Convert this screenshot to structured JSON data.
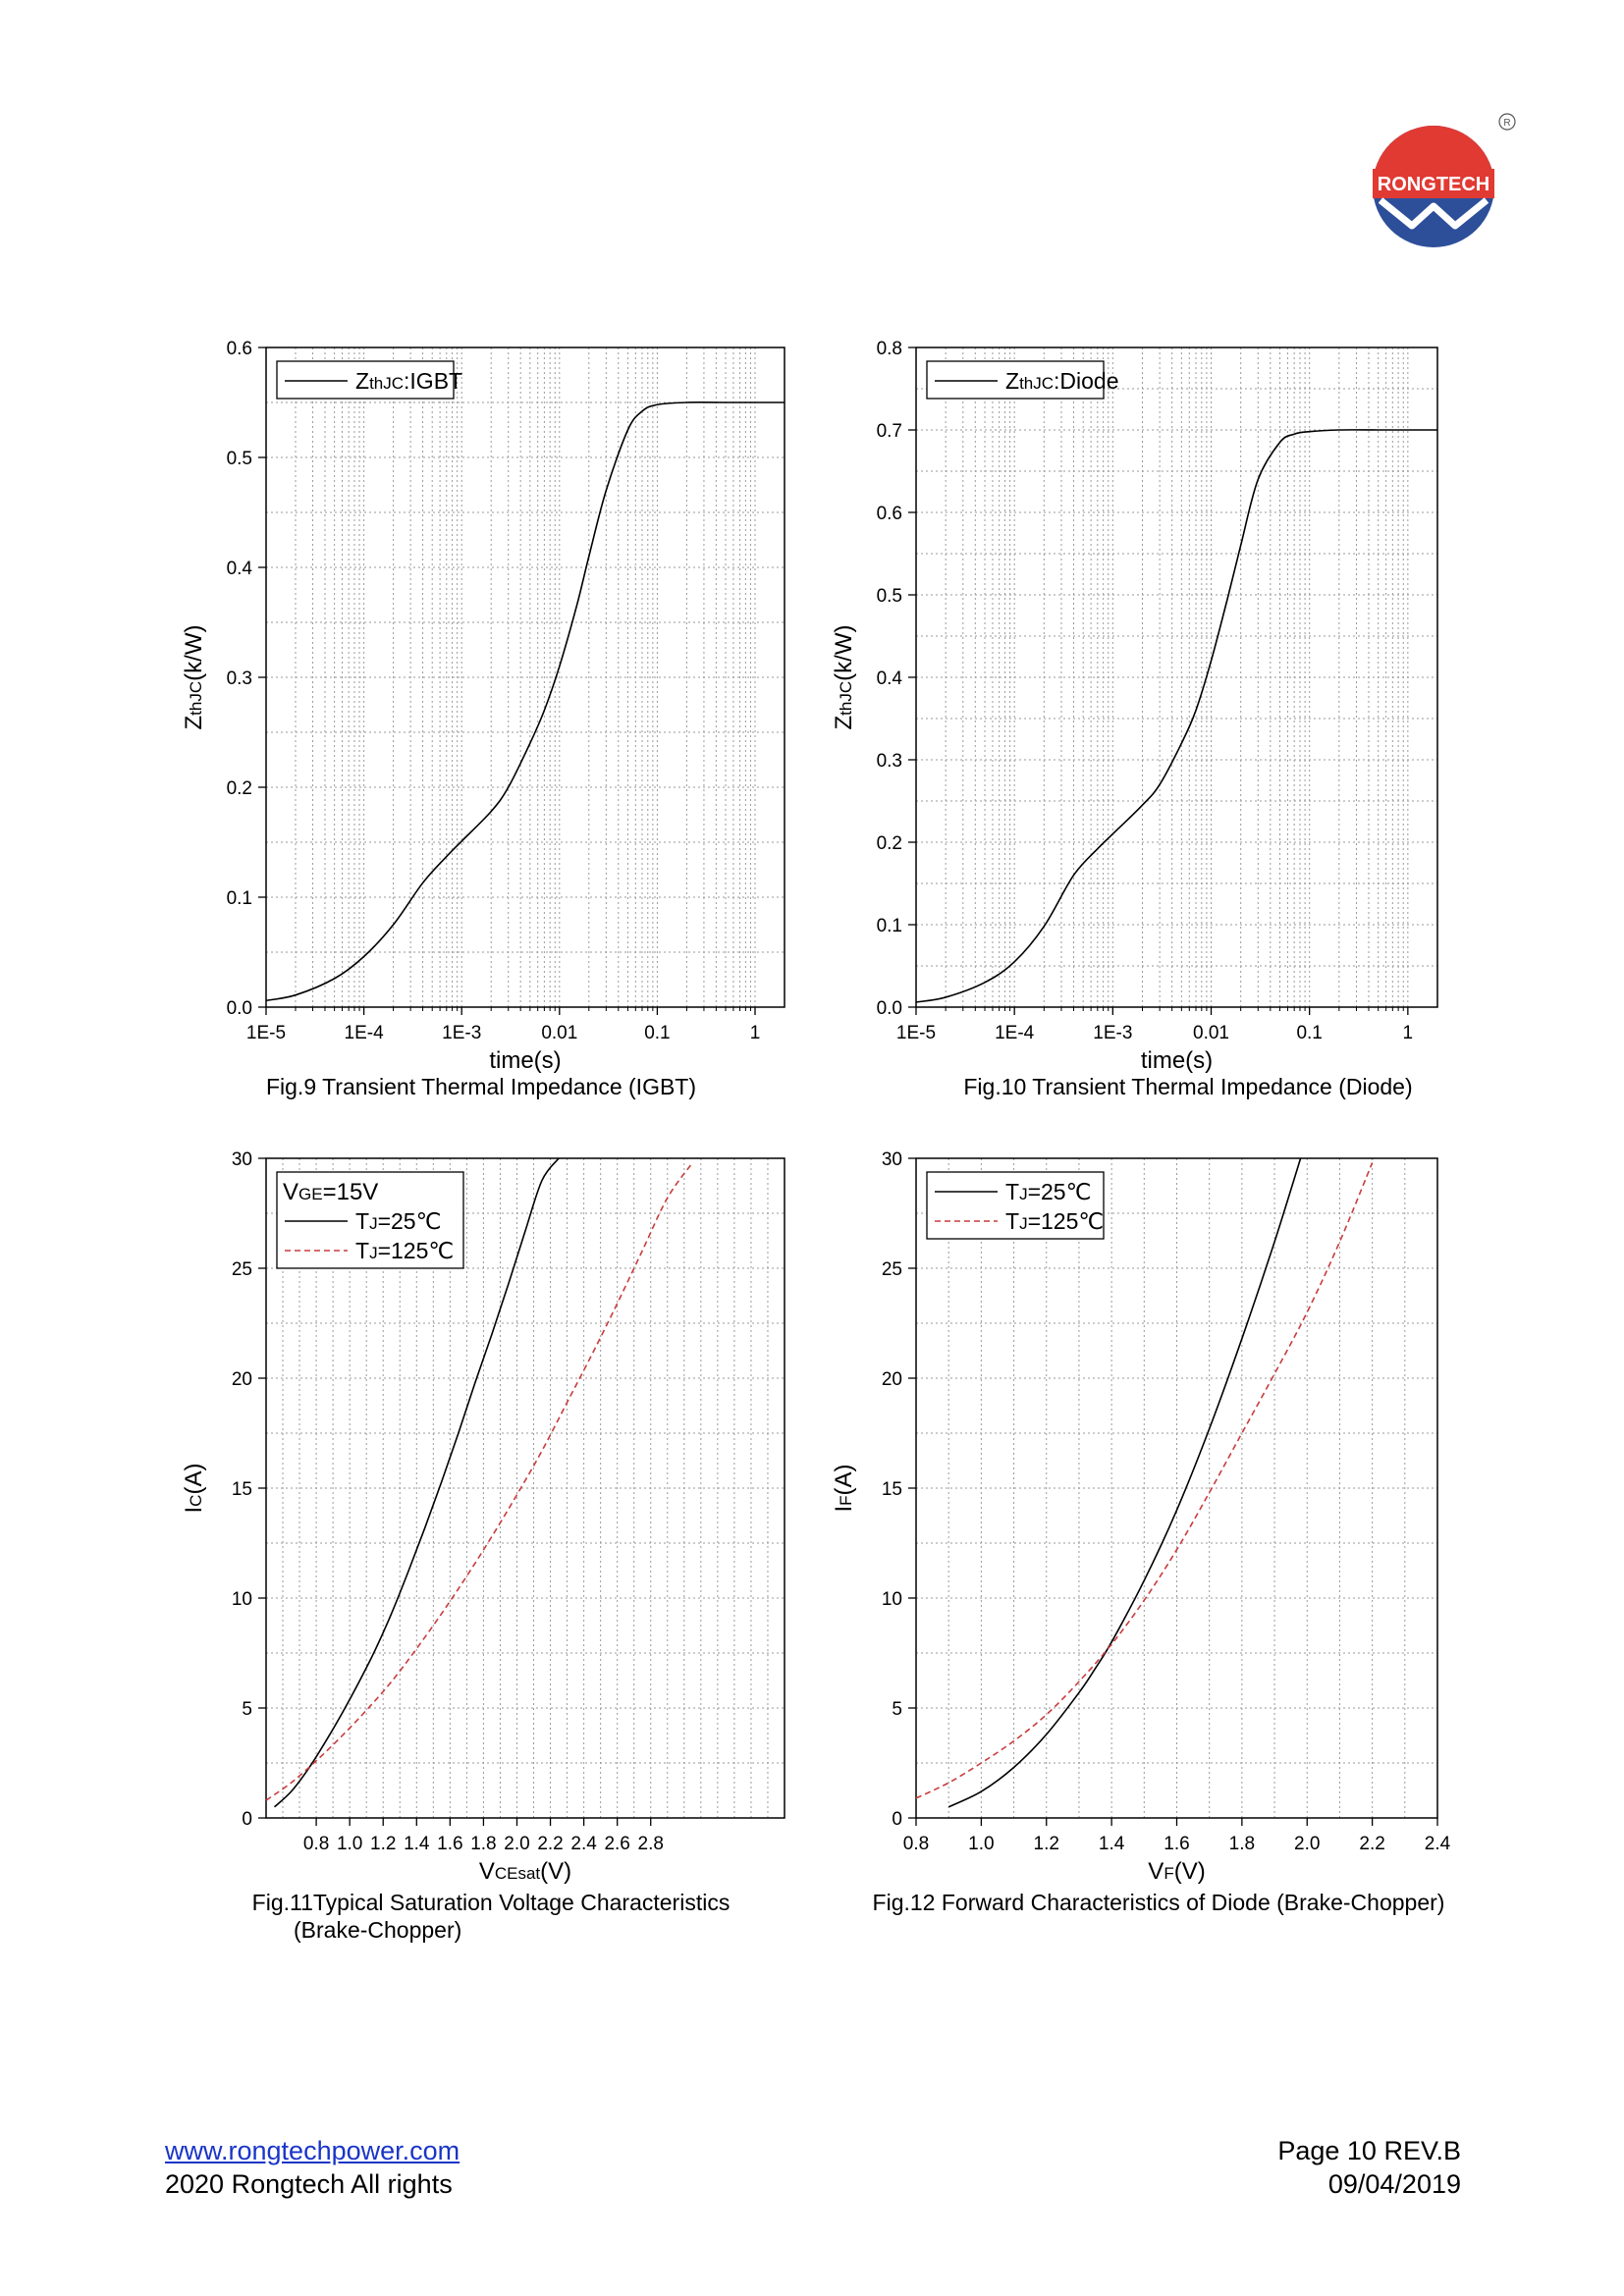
{
  "logo": {
    "text": "RONGTECH",
    "registered_mark": "R",
    "colors": {
      "red": "#e03a33",
      "blue": "#2d4f9a"
    }
  },
  "chart_data": [
    {
      "id": "fig9",
      "type": "line",
      "caption": "Fig.9 Transient Thermal Impedance (IGBT)",
      "xlabel": "time(s)",
      "ylabel": "ZthJC(k/W)",
      "xscale": "log",
      "xlim": [
        1e-05,
        2
      ],
      "ylim": [
        0,
        0.6
      ],
      "xticks": [
        1e-05,
        0.0001,
        0.001,
        0.01,
        0.1,
        1
      ],
      "xtick_labels": [
        "1E-5",
        "1E-4",
        "1E-3",
        "0.01",
        "0.1",
        "1"
      ],
      "yticks": [
        0,
        0.1,
        0.2,
        0.3,
        0.4,
        0.5,
        0.6
      ],
      "ytick_labels": [
        "0.0",
        "0.1",
        "0.2",
        "0.3",
        "0.4",
        "0.5",
        "0.6"
      ],
      "legend_position": "top-left",
      "legend_header": "",
      "series": [
        {
          "name": "ZthJC:IGBT",
          "color": "#000000",
          "dashed": false,
          "x": [
            1e-05,
            2e-05,
            5e-05,
            0.0001,
            0.0002,
            0.0004,
            0.0007,
            0.001,
            0.002,
            0.003,
            0.005,
            0.007,
            0.01,
            0.015,
            0.02,
            0.03,
            0.05,
            0.07,
            0.1,
            0.2,
            0.5,
            1,
            2
          ],
          "y": [
            0.006,
            0.011,
            0.026,
            0.046,
            0.075,
            0.113,
            0.137,
            0.151,
            0.178,
            0.2,
            0.24,
            0.27,
            0.31,
            0.365,
            0.41,
            0.47,
            0.525,
            0.542,
            0.548,
            0.55,
            0.55,
            0.55,
            0.55
          ]
        }
      ]
    },
    {
      "id": "fig10",
      "type": "line",
      "caption": "Fig.10 Transient Thermal Impedance (Diode)",
      "xlabel": "time(s)",
      "ylabel": "ZthJC(k/W)",
      "xscale": "log",
      "xlim": [
        1e-05,
        2
      ],
      "ylim": [
        0,
        0.8
      ],
      "xticks": [
        1e-05,
        0.0001,
        0.001,
        0.01,
        0.1,
        1
      ],
      "xtick_labels": [
        "1E-5",
        "1E-4",
        "1E-3",
        "0.01",
        "0.1",
        "1"
      ],
      "yticks": [
        0,
        0.1,
        0.2,
        0.3,
        0.4,
        0.5,
        0.6,
        0.7,
        0.8
      ],
      "ytick_labels": [
        "0.0",
        "0.1",
        "0.2",
        "0.3",
        "0.4",
        "0.5",
        "0.6",
        "0.7",
        "0.8"
      ],
      "legend_position": "top-left",
      "legend_header": "",
      "series": [
        {
          "name": "ZthJC:Diode",
          "color": "#000000",
          "dashed": false,
          "x": [
            1e-05,
            2e-05,
            5e-05,
            0.0001,
            0.0002,
            0.0004,
            0.0007,
            0.001,
            0.002,
            0.003,
            0.005,
            0.007,
            0.01,
            0.015,
            0.02,
            0.03,
            0.05,
            0.07,
            0.1,
            0.2,
            0.5,
            1,
            2
          ],
          "y": [
            0.006,
            0.012,
            0.03,
            0.055,
            0.098,
            0.16,
            0.192,
            0.21,
            0.245,
            0.27,
            0.32,
            0.36,
            0.42,
            0.5,
            0.56,
            0.64,
            0.685,
            0.695,
            0.698,
            0.7,
            0.7,
            0.7,
            0.7
          ]
        }
      ]
    },
    {
      "id": "fig11",
      "type": "line",
      "caption": "Fig.11Typical Saturation Voltage Characteristics",
      "caption_line2": "(Brake-Chopper)",
      "xlabel": "VCEsat(V)",
      "ylabel": "IC(A)",
      "xscale": "linear",
      "xlim": [
        0.5,
        3.6
      ],
      "ylim": [
        0,
        30
      ],
      "xticks": [
        0.8,
        1.0,
        1.2,
        1.4,
        1.6,
        1.8,
        2.0,
        2.2,
        2.4,
        2.6,
        2.8
      ],
      "xtick_labels": [
        "0.8",
        "1.0",
        "1.2",
        "1.4",
        "1.6",
        "1.8",
        "2.0",
        "2.2",
        "2.4",
        "2.6",
        "2.8"
      ],
      "yticks": [
        0,
        5,
        10,
        15,
        20,
        25,
        30
      ],
      "ytick_labels": [
        "0",
        "5",
        "10",
        "15",
        "20",
        "25",
        "30"
      ],
      "legend_position": "top-left",
      "legend_header": "VGE=15V",
      "series": [
        {
          "name": "TJ=25℃",
          "color": "#000000",
          "dashed": false,
          "x": [
            0.55,
            0.65,
            0.75,
            0.85,
            0.95,
            1.05,
            1.15,
            1.25,
            1.35,
            1.45,
            1.55,
            1.65,
            1.75,
            1.85,
            1.95,
            2.05,
            2.15,
            2.25
          ],
          "y": [
            0.5,
            1.2,
            2.2,
            3.4,
            4.7,
            6.1,
            7.6,
            9.3,
            11.2,
            13.2,
            15.3,
            17.5,
            19.8,
            22.0,
            24.3,
            26.7,
            29.0,
            30.0
          ]
        },
        {
          "name": "TJ=125℃",
          "color": "#c83c3c",
          "dashed": true,
          "x": [
            0.5,
            0.65,
            0.8,
            0.95,
            1.1,
            1.25,
            1.4,
            1.55,
            1.7,
            1.85,
            2.0,
            2.15,
            2.3,
            2.45,
            2.6,
            2.75,
            2.9,
            3.05
          ],
          "y": [
            0.8,
            1.6,
            2.6,
            3.7,
            4.9,
            6.2,
            7.7,
            9.3,
            11.0,
            12.8,
            14.7,
            16.7,
            18.9,
            21.1,
            23.4,
            25.8,
            28.2,
            29.8
          ]
        }
      ]
    },
    {
      "id": "fig12",
      "type": "line",
      "caption": "Fig.12 Forward Characteristics of Diode (Brake-Chopper)",
      "xlabel": "VF(V)",
      "ylabel": "IF(A)",
      "xscale": "linear",
      "xlim": [
        0.8,
        2.4
      ],
      "ylim": [
        0,
        30
      ],
      "xticks": [
        0.8,
        1.0,
        1.2,
        1.4,
        1.6,
        1.8,
        2.0,
        2.2,
        2.4
      ],
      "xtick_labels": [
        "0.8",
        "1.0",
        "1.2",
        "1.4",
        "1.6",
        "1.8",
        "2.0",
        "2.2",
        "2.4"
      ],
      "yticks": [
        0,
        5,
        10,
        15,
        20,
        25,
        30
      ],
      "ytick_labels": [
        "0",
        "5",
        "10",
        "15",
        "20",
        "25",
        "30"
      ],
      "legend_position": "top-left",
      "legend_header": "",
      "series": [
        {
          "name": "TJ=25℃",
          "color": "#000000",
          "dashed": false,
          "x": [
            0.9,
            1.0,
            1.1,
            1.2,
            1.3,
            1.35,
            1.4,
            1.5,
            1.6,
            1.7,
            1.8,
            1.9,
            1.98
          ],
          "y": [
            0.5,
            1.2,
            2.3,
            3.8,
            5.7,
            6.8,
            8.0,
            10.8,
            14.0,
            17.7,
            21.8,
            26.2,
            30.0
          ]
        },
        {
          "name": "TJ=125℃",
          "color": "#c83c3c",
          "dashed": true,
          "x": [
            0.8,
            0.9,
            1.0,
            1.1,
            1.2,
            1.3,
            1.4,
            1.5,
            1.6,
            1.7,
            1.8,
            1.9,
            2.0,
            2.1,
            2.2
          ],
          "y": [
            0.9,
            1.6,
            2.5,
            3.5,
            4.7,
            6.2,
            7.9,
            9.9,
            12.2,
            14.8,
            17.5,
            20.2,
            23.0,
            26.2,
            29.8
          ]
        }
      ]
    }
  ],
  "footer": {
    "website": "www.rongtechpower.com",
    "copyright": "2020 Rongtech All rights",
    "page": "Page 10  REV.B",
    "date": "09/04/2019"
  }
}
